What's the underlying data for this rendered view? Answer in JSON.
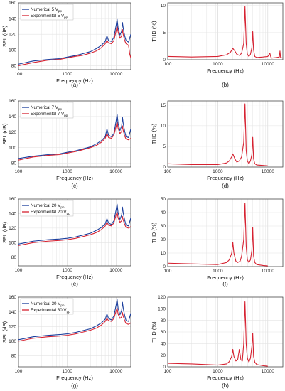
{
  "colors": {
    "numerical": "#1a3d9c",
    "experimental": "#d62231",
    "thd": "#d62231",
    "grid": "#e3e3e3",
    "axis": "#333333"
  },
  "chart_data": [
    {
      "type": "line",
      "panel": "(a)",
      "xscale": "log",
      "xlabel": "Frequency (Hz)",
      "ylabel": "SPL (dB)",
      "xlim": [
        100,
        20000
      ],
      "ylim": [
        75,
        160
      ],
      "yticks": [
        80,
        100,
        120,
        140,
        160
      ],
      "xticks": [
        100,
        1000,
        10000
      ],
      "grid": true,
      "legend_position": "top-left",
      "series": [
        {
          "name": "Numerical 5 V",
          "name_sub": "pp",
          "color": "numerical",
          "x": [
            100,
            200,
            400,
            700,
            1000,
            1500,
            2000,
            3000,
            4000,
            5000,
            6000,
            6500,
            7000,
            8000,
            9000,
            10000,
            10500,
            11000,
            12000,
            13000,
            13500,
            14000,
            15000,
            16000,
            18000,
            20000
          ],
          "y": [
            82,
            86,
            88,
            89,
            91,
            93,
            95,
            98,
            102,
            106,
            111,
            118,
            112,
            111,
            116,
            131,
            139,
            128,
            119,
            124,
            135,
            128,
            118,
            112,
            110,
            120
          ]
        },
        {
          "name": "Experimental 5 V",
          "name_sub": "pp",
          "color": "experimental",
          "x": [
            100,
            200,
            400,
            700,
            1000,
            1500,
            2000,
            3000,
            4000,
            5000,
            6000,
            6500,
            7000,
            8000,
            9000,
            10000,
            10500,
            11000,
            12000,
            13000,
            13500,
            14000,
            15000,
            16000,
            18000,
            19000,
            20000
          ],
          "y": [
            80,
            84,
            87,
            88,
            90,
            92,
            93,
            96,
            99,
            103,
            108,
            112,
            109,
            108,
            112,
            124,
            130,
            123,
            115,
            118,
            126,
            120,
            112,
            108,
            106,
            95,
            90
          ]
        }
      ]
    },
    {
      "type": "line",
      "panel": "(b)",
      "xscale": "log",
      "xlabel": "Frequency (Hz)",
      "ylabel": "THD (%)",
      "xlim": [
        100,
        20000
      ],
      "ylim": [
        0,
        10.5
      ],
      "yticks": [
        0,
        5,
        10
      ],
      "xticks": [
        100,
        1000,
        10000
      ],
      "grid": true,
      "series": [
        {
          "color": "thd",
          "x": [
            100,
            300,
            1000,
            1500,
            1800,
            2000,
            2200,
            2400,
            2700,
            3000,
            3300,
            3500,
            3700,
            3900,
            4200,
            4500,
            4800,
            5000,
            5200,
            5500,
            6000,
            8000,
            10000,
            11000,
            11500,
            12000,
            15000,
            17000,
            17500,
            18000,
            20000
          ],
          "y": [
            0.6,
            0.5,
            0.6,
            0.9,
            1.4,
            2.1,
            1.6,
            1.0,
            0.8,
            1.2,
            3.0,
            9.8,
            3.0,
            1.0,
            0.6,
            1.0,
            2.2,
            5.2,
            1.8,
            0.6,
            0.4,
            0.5,
            0.6,
            1.2,
            0.5,
            0.3,
            0.4,
            0.5,
            1.6,
            0.4,
            0.3
          ]
        }
      ]
    },
    {
      "type": "line",
      "panel": "(c)",
      "xscale": "log",
      "xlabel": "Frequency (Hz)",
      "ylabel": "SPL (dB)",
      "xlim": [
        100,
        20000
      ],
      "ylim": [
        75,
        160
      ],
      "yticks": [
        80,
        100,
        120,
        140,
        160
      ],
      "xticks": [
        100,
        1000,
        10000
      ],
      "grid": true,
      "legend_position": "top-left",
      "series": [
        {
          "name": "Numerical 7 V",
          "name_sub": "pp",
          "color": "numerical",
          "x": [
            100,
            200,
            400,
            700,
            1000,
            1500,
            2000,
            3000,
            4000,
            5000,
            6000,
            6500,
            7000,
            8000,
            9000,
            10000,
            10500,
            11000,
            12000,
            13000,
            13500,
            14000,
            15000,
            16000,
            18000,
            20000
          ],
          "y": [
            86,
            89,
            91,
            92,
            94,
            96,
            98,
            101,
            105,
            109,
            114,
            124,
            116,
            114,
            118,
            134,
            143,
            131,
            122,
            128,
            139,
            131,
            121,
            114,
            113,
            124
          ]
        },
        {
          "name": "Experimental 7 V",
          "name_sub": "pp",
          "color": "experimental",
          "x": [
            100,
            200,
            400,
            700,
            1000,
            1500,
            2000,
            3000,
            4000,
            5000,
            6000,
            6500,
            7000,
            8000,
            9000,
            10000,
            10500,
            11000,
            12000,
            13000,
            13500,
            14000,
            15000,
            16000,
            18000,
            20000
          ],
          "y": [
            84,
            88,
            90,
            91,
            93,
            95,
            97,
            100,
            103,
            107,
            112,
            118,
            113,
            112,
            116,
            127,
            133,
            125,
            118,
            121,
            128,
            122,
            115,
            111,
            110,
            112
          ]
        }
      ]
    },
    {
      "type": "line",
      "panel": "(d)",
      "xscale": "log",
      "xlabel": "Frequency (Hz)",
      "ylabel": "THD (%)",
      "xlim": [
        100,
        20000
      ],
      "ylim": [
        0,
        16
      ],
      "yticks": [
        0,
        5,
        10,
        15
      ],
      "xticks": [
        100,
        1000,
        10000
      ],
      "grid": true,
      "series": [
        {
          "color": "thd",
          "x": [
            100,
            300,
            1000,
            1500,
            1700,
            1900,
            2000,
            2200,
            2400,
            2700,
            3000,
            3300,
            3500,
            3700,
            3900,
            4200,
            4500,
            4800,
            5000,
            5200,
            5500,
            6000,
            8000,
            10000
          ],
          "y": [
            0.8,
            0.6,
            0.6,
            1.0,
            1.5,
            2.5,
            3.2,
            2.0,
            1.2,
            1.5,
            2.5,
            6.0,
            15.3,
            4.0,
            1.5,
            0.8,
            1.5,
            3.0,
            7.2,
            2.0,
            0.8,
            0.5,
            0.4,
            0.3
          ]
        }
      ]
    },
    {
      "type": "line",
      "panel": "(e)",
      "xscale": "log",
      "xlabel": "Frequency (Hz)",
      "ylabel": "SPL (dB)",
      "xlim": [
        100,
        20000
      ],
      "ylim": [
        68,
        160
      ],
      "yticks": [
        80,
        100,
        120,
        140,
        160
      ],
      "xticks": [
        100,
        1000,
        10000
      ],
      "grid": true,
      "legend_position": "top-left",
      "series": [
        {
          "name": "Numerical 20 V",
          "name_sub": "pp",
          "color": "numerical",
          "x": [
            100,
            200,
            400,
            700,
            1000,
            1500,
            2000,
            3000,
            4000,
            5000,
            6000,
            6500,
            7000,
            8000,
            9000,
            10000,
            10500,
            11000,
            12000,
            13000,
            13500,
            14000,
            15000,
            16000,
            18000,
            20000
          ],
          "y": [
            98,
            102,
            104,
            105,
            106,
            108,
            110,
            113,
            117,
            121,
            126,
            133,
            127,
            125,
            130,
            145,
            153,
            141,
            132,
            138,
            149,
            141,
            131,
            124,
            123,
            134
          ]
        },
        {
          "name": "Experimental 20 V",
          "name_sub": "pp",
          "color": "experimental",
          "x": [
            100,
            200,
            400,
            700,
            1000,
            1500,
            2000,
            3000,
            4000,
            5000,
            6000,
            6500,
            7000,
            8000,
            9000,
            10000,
            10500,
            11000,
            12000,
            13000,
            13500,
            14000,
            15000,
            16000,
            18000,
            20000
          ],
          "y": [
            96,
            100,
            102,
            103,
            104,
            106,
            108,
            111,
            114,
            118,
            123,
            128,
            124,
            123,
            127,
            138,
            142,
            134,
            128,
            130,
            136,
            131,
            125,
            121,
            120,
            122
          ]
        }
      ]
    },
    {
      "type": "line",
      "panel": "(f)",
      "xscale": "log",
      "xlabel": "Frequency (Hz)",
      "ylabel": "THD (%)",
      "xlim": [
        100,
        20000
      ],
      "ylim": [
        0,
        50
      ],
      "yticks": [
        0,
        10,
        20,
        30,
        40,
        50
      ],
      "xticks": [
        100,
        1000,
        10000
      ],
      "grid": true,
      "series": [
        {
          "color": "thd",
          "x": [
            100,
            300,
            1000,
            1500,
            1700,
            1900,
            2000,
            2100,
            2300,
            2500,
            2800,
            3000,
            3300,
            3500,
            3700,
            3900,
            4200,
            4500,
            4800,
            5000,
            5200,
            5500,
            6000,
            8000,
            10000
          ],
          "y": [
            2.5,
            2.0,
            1.5,
            3.0,
            5.0,
            10.0,
            18.0,
            10.0,
            4.0,
            3.0,
            4.0,
            8.0,
            20.0,
            47.0,
            15.0,
            5.0,
            3.0,
            5.0,
            12.0,
            29.0,
            8.0,
            3.0,
            1.5,
            0.8,
            0.5
          ]
        }
      ]
    },
    {
      "type": "line",
      "panel": "(g)",
      "xscale": "log",
      "xlabel": "Frequency (Hz)",
      "ylabel": "SPL (dB)",
      "xlim": [
        100,
        20000
      ],
      "ylim": [
        65,
        160
      ],
      "yticks": [
        80,
        100,
        120,
        140,
        160
      ],
      "xticks": [
        100,
        1000,
        10000
      ],
      "grid": true,
      "legend_position": "top-left",
      "series": [
        {
          "name": "Numerical 30 V",
          "name_sub": "pp",
          "color": "numerical",
          "x": [
            100,
            200,
            400,
            700,
            1000,
            1500,
            2000,
            3000,
            4000,
            5000,
            6000,
            6500,
            7000,
            8000,
            9000,
            10000,
            10500,
            11000,
            12000,
            13000,
            13500,
            14000,
            15000,
            16000,
            18000,
            20000
          ],
          "y": [
            102,
            106,
            108,
            109,
            110,
            112,
            114,
            117,
            121,
            125,
            130,
            137,
            131,
            129,
            134,
            149,
            157,
            145,
            136,
            142,
            153,
            145,
            135,
            128,
            127,
            138
          ]
        },
        {
          "name": "Experimental 30 V",
          "name_sub": "pp",
          "color": "experimental",
          "x": [
            100,
            200,
            400,
            700,
            1000,
            1500,
            2000,
            3000,
            4000,
            5000,
            6000,
            6500,
            7000,
            8000,
            9000,
            10000,
            10500,
            11000,
            12000,
            13000,
            13500,
            14000,
            15000,
            16000,
            18000,
            20000
          ],
          "y": [
            100,
            104,
            106,
            107,
            108,
            110,
            112,
            115,
            118,
            122,
            127,
            131,
            128,
            127,
            131,
            141,
            145,
            137,
            131,
            133,
            139,
            134,
            128,
            124,
            123,
            125
          ]
        }
      ]
    },
    {
      "type": "line",
      "panel": "(h)",
      "xscale": "log",
      "xlabel": "Frequency (Hz)",
      "ylabel": "THD (%)",
      "xlim": [
        100,
        20000
      ],
      "ylim": [
        0,
        120
      ],
      "yticks": [
        0,
        20,
        40,
        60,
        80,
        100,
        120
      ],
      "xticks": [
        100,
        1000,
        10000
      ],
      "grid": true,
      "series": [
        {
          "color": "thd",
          "x": [
            100,
            300,
            1000,
            1500,
            1700,
            1900,
            2000,
            2100,
            2300,
            2500,
            2700,
            2900,
            3100,
            3300,
            3500,
            3700,
            3900,
            4200,
            4500,
            4800,
            5000,
            5200,
            5500,
            6000,
            8000,
            10000
          ],
          "y": [
            6,
            5,
            3,
            5,
            9,
            18,
            30,
            18,
            10,
            12,
            30,
            12,
            10,
            40,
            112,
            40,
            15,
            8,
            15,
            35,
            58,
            18,
            8,
            4,
            2,
            1
          ]
        }
      ]
    }
  ]
}
